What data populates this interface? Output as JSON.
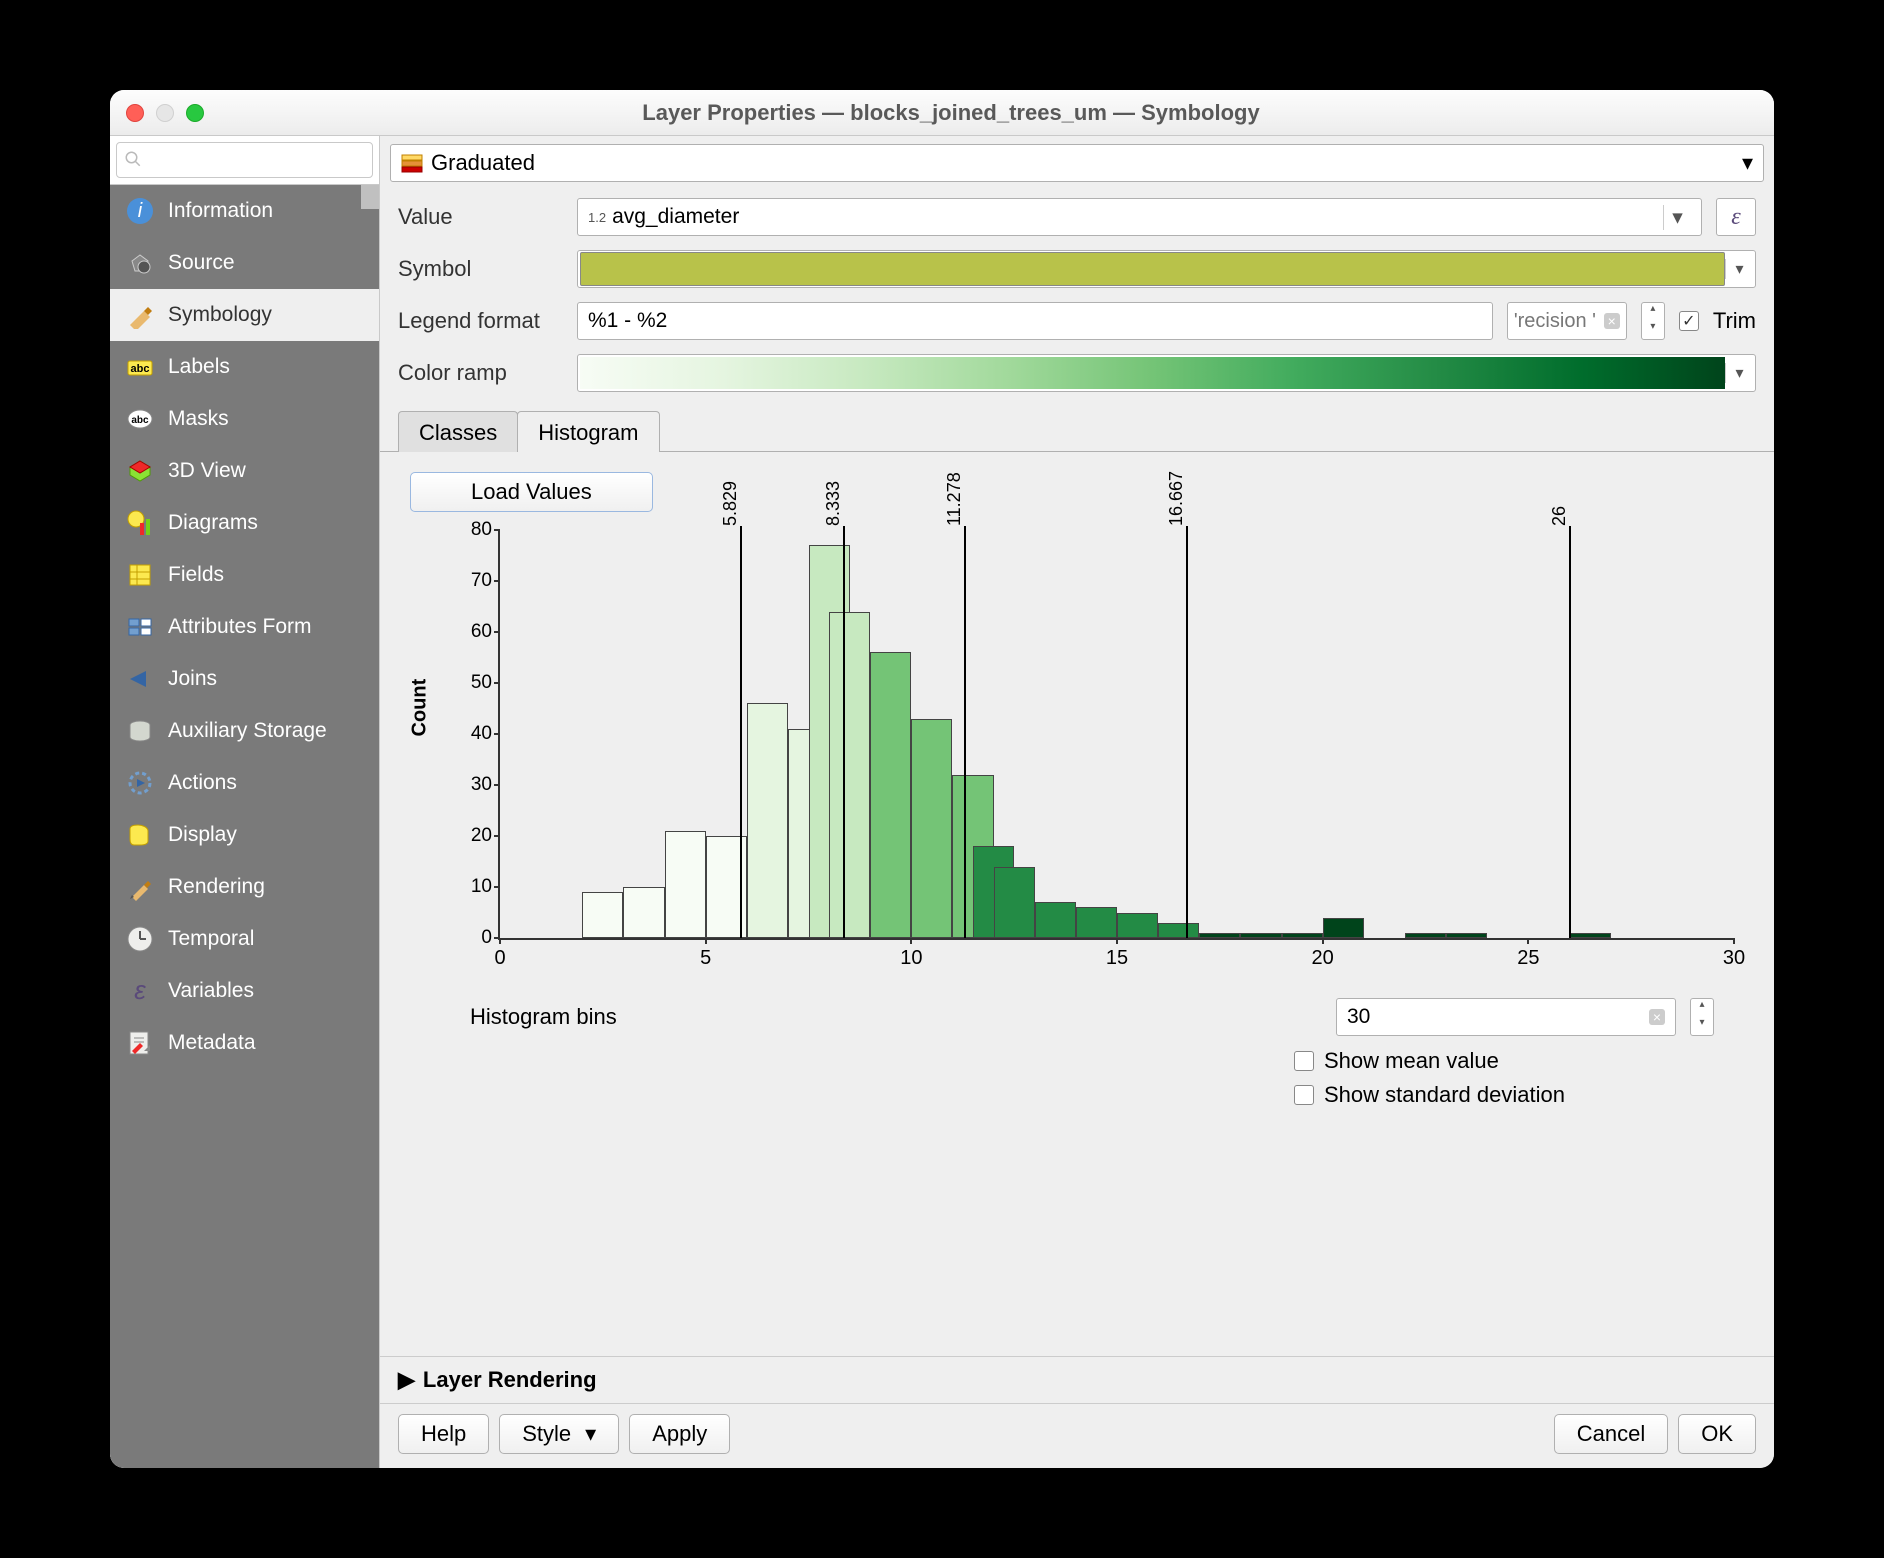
{
  "window": {
    "title": "Layer Properties — blocks_joined_trees_um — Symbology"
  },
  "search": {
    "placeholder": ""
  },
  "sidebar": {
    "items": [
      {
        "label": "Information"
      },
      {
        "label": "Source"
      },
      {
        "label": "Symbology"
      },
      {
        "label": "Labels"
      },
      {
        "label": "Masks"
      },
      {
        "label": "3D View"
      },
      {
        "label": "Diagrams"
      },
      {
        "label": "Fields"
      },
      {
        "label": "Attributes Form"
      },
      {
        "label": "Joins"
      },
      {
        "label": "Auxiliary Storage"
      },
      {
        "label": "Actions"
      },
      {
        "label": "Display"
      },
      {
        "label": "Rendering"
      },
      {
        "label": "Temporal"
      },
      {
        "label": "Variables"
      },
      {
        "label": "Metadata"
      }
    ],
    "active_index": 2
  },
  "renderer": {
    "type": "Graduated"
  },
  "form": {
    "value_label": "Value",
    "value_prefix": "1.2",
    "value_field": "avg_diameter",
    "symbol_label": "Symbol",
    "symbol_color": "#b8c24a",
    "legend_format_label": "Legend format",
    "legend_format_value": "%1 - %2",
    "precision_text": "'recision '",
    "trim_label": "Trim",
    "trim_checked": true,
    "color_ramp_label": "Color ramp",
    "color_ramp_stops": [
      "#f7fcf5",
      "#e5f5e0",
      "#c7e9c0",
      "#a1d99b",
      "#74c476",
      "#41ab5d",
      "#238b45",
      "#006d2c",
      "#00441b"
    ]
  },
  "tabs": {
    "classes": "Classes",
    "histogram": "Histogram",
    "active": "histogram"
  },
  "histogram": {
    "load_button": "Load Values",
    "ylabel": "Count",
    "y_ticks": [
      0,
      10,
      20,
      30,
      40,
      50,
      60,
      70,
      80
    ],
    "y_max": 80,
    "x_ticks": [
      0,
      5,
      10,
      15,
      20,
      25,
      30
    ],
    "x_max": 30,
    "breaks": [
      {
        "value": 5.829,
        "label": "5.829"
      },
      {
        "value": 8.333,
        "label": "8.333"
      },
      {
        "value": 11.278,
        "label": "11.278"
      },
      {
        "value": 16.667,
        "label": "16.667"
      },
      {
        "value": 26,
        "label": "26"
      }
    ],
    "bars": [
      {
        "x": 2,
        "count": 9,
        "color": "#f7fcf5"
      },
      {
        "x": 3,
        "count": 10,
        "color": "#f7fcf5"
      },
      {
        "x": 4,
        "count": 21,
        "color": "#f7fcf5"
      },
      {
        "x": 5,
        "count": 20,
        "color": "#f7fcf5"
      },
      {
        "x": 6,
        "count": 46,
        "color": "#e5f5e0"
      },
      {
        "x": 7,
        "count": 41,
        "color": "#e5f5e0"
      },
      {
        "x": 7.5,
        "count": 77,
        "color": "#c7e9c0"
      },
      {
        "x": 8,
        "count": 64,
        "color": "#c7e9c0"
      },
      {
        "x": 9,
        "count": 56,
        "color": "#74c476"
      },
      {
        "x": 10,
        "count": 43,
        "color": "#74c476"
      },
      {
        "x": 11,
        "count": 32,
        "color": "#74c476"
      },
      {
        "x": 11.5,
        "count": 18,
        "color": "#238b45"
      },
      {
        "x": 12,
        "count": 14,
        "color": "#238b45"
      },
      {
        "x": 13,
        "count": 7,
        "color": "#238b45"
      },
      {
        "x": 14,
        "count": 6,
        "color": "#238b45"
      },
      {
        "x": 15,
        "count": 5,
        "color": "#238b45"
      },
      {
        "x": 16,
        "count": 3,
        "color": "#238b45"
      },
      {
        "x": 17,
        "count": 1,
        "color": "#00441b"
      },
      {
        "x": 18,
        "count": 1,
        "color": "#00441b"
      },
      {
        "x": 19,
        "count": 1,
        "color": "#00441b"
      },
      {
        "x": 20,
        "count": 4,
        "color": "#00441b"
      },
      {
        "x": 22,
        "count": 1,
        "color": "#00441b"
      },
      {
        "x": 23,
        "count": 1,
        "color": "#00441b"
      },
      {
        "x": 26,
        "count": 1,
        "color": "#00441b"
      }
    ],
    "bins_label": "Histogram bins",
    "bins_value": "30",
    "show_mean_label": "Show mean value",
    "show_mean": false,
    "show_std_label": "Show standard deviation",
    "show_std": false
  },
  "layer_rendering": {
    "label": "Layer Rendering"
  },
  "footer": {
    "help": "Help",
    "style": "Style",
    "apply": "Apply",
    "cancel": "Cancel",
    "ok": "OK"
  }
}
